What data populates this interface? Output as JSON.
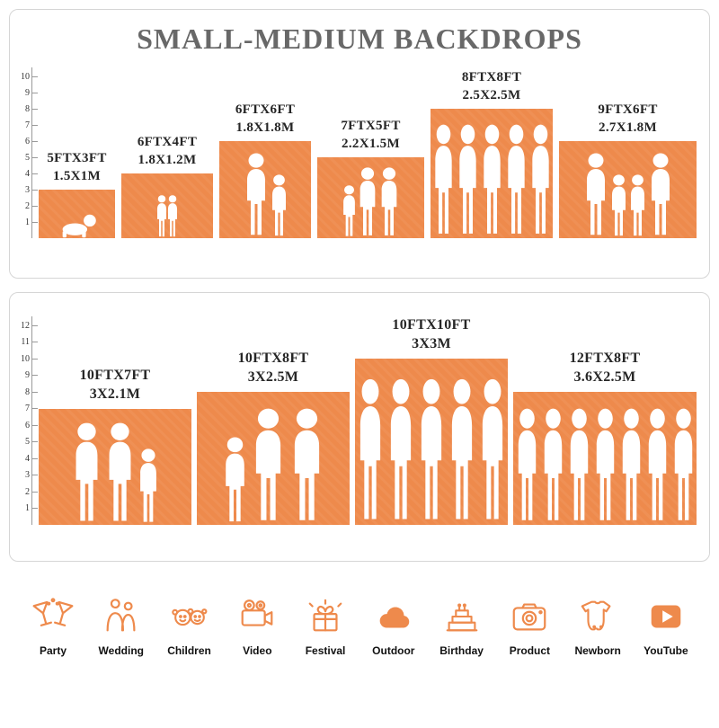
{
  "page": {
    "title": "SMALL-MEDIUM BACKDROPS"
  },
  "colors": {
    "orange": "#ee8a4c",
    "title_text": "#686868",
    "label_text": "#262626"
  },
  "chart_data": [
    {
      "type": "bar",
      "title": "SMALL-MEDIUM BACKDROPS",
      "yticks": [
        1,
        2,
        3,
        4,
        5,
        6,
        7,
        8,
        9,
        10
      ],
      "ylim": [
        0,
        10
      ],
      "bars": [
        {
          "size_ft": "5FTX3FT",
          "size_m": "1.5X1M",
          "width_ft": 5,
          "height_ft": 3,
          "figures": [
            "baby"
          ]
        },
        {
          "size_ft": "6FTX4FT",
          "size_m": "1.8X1.2M",
          "width_ft": 6,
          "height_ft": 4,
          "figures": [
            "child",
            "child"
          ]
        },
        {
          "size_ft": "6FTX6FT",
          "size_m": "1.8X1.8M",
          "width_ft": 6,
          "height_ft": 6,
          "figures": [
            "adult",
            "child"
          ]
        },
        {
          "size_ft": "7FTX5FT",
          "size_m": "2.2X1.5M",
          "width_ft": 7,
          "height_ft": 5,
          "figures": [
            "child",
            "adult",
            "adult"
          ]
        },
        {
          "size_ft": "8FTX8FT",
          "size_m": "2.5X2.5M",
          "width_ft": 8,
          "height_ft": 8,
          "figures": [
            "adult",
            "adult",
            "adult",
            "adult",
            "adult"
          ]
        },
        {
          "size_ft": "9FTX6FT",
          "size_m": "2.7X1.8M",
          "width_ft": 9,
          "height_ft": 6,
          "figures": [
            "adult",
            "child",
            "child",
            "adult"
          ]
        }
      ]
    },
    {
      "type": "bar",
      "title": "",
      "yticks": [
        1,
        2,
        3,
        4,
        5,
        6,
        7,
        8,
        9,
        10,
        11,
        12
      ],
      "ylim": [
        0,
        12
      ],
      "bars": [
        {
          "size_ft": "10FTX7FT",
          "size_m": "3X2.1M",
          "width_ft": 10,
          "height_ft": 7,
          "figures": [
            "adult",
            "adult",
            "child"
          ]
        },
        {
          "size_ft": "10FTX8FT",
          "size_m": "3X2.5M",
          "width_ft": 10,
          "height_ft": 8,
          "figures": [
            "child",
            "adult",
            "adult"
          ]
        },
        {
          "size_ft": "10FTX10FT",
          "size_m": "3X3M",
          "width_ft": 10,
          "height_ft": 10,
          "figures": [
            "adult",
            "adult",
            "adult",
            "adult",
            "adult"
          ]
        },
        {
          "size_ft": "12FTX8FT",
          "size_m": "3.6X2.5M",
          "width_ft": 12,
          "height_ft": 8,
          "figures": [
            "adult",
            "adult",
            "adult",
            "adult",
            "adult",
            "adult",
            "adult"
          ]
        }
      ]
    }
  ],
  "categories": [
    {
      "label": "Party",
      "icon": "party-icon"
    },
    {
      "label": "Wedding",
      "icon": "wedding-icon"
    },
    {
      "label": "Children",
      "icon": "children-icon"
    },
    {
      "label": "Video",
      "icon": "video-icon"
    },
    {
      "label": "Festival",
      "icon": "festival-icon"
    },
    {
      "label": "Outdoor",
      "icon": "outdoor-icon"
    },
    {
      "label": "Birthday",
      "icon": "birthday-icon"
    },
    {
      "label": "Product",
      "icon": "product-icon"
    },
    {
      "label": "Newborn",
      "icon": "newborn-icon"
    },
    {
      "label": "YouTube",
      "icon": "youtube-icon"
    }
  ]
}
